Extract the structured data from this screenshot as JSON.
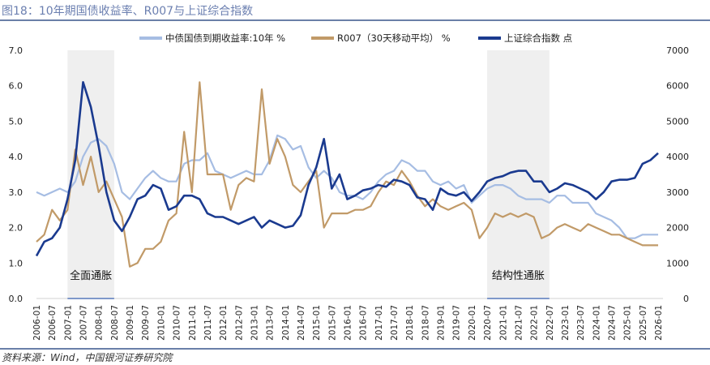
{
  "title": "图18：10年期国债收益率、R007与上证综合指数",
  "source": "资料来源：Wind，中国银河证券研究院",
  "chart_data": {
    "type": "line",
    "legend_position": "top",
    "grid": false,
    "y_left": {
      "range": [
        0,
        7
      ],
      "ticks": [
        "0.0",
        "1.0",
        "2.0",
        "3.0",
        "4.0",
        "5.0",
        "6.0",
        "7.0"
      ]
    },
    "y_right": {
      "range": [
        0,
        7000
      ],
      "ticks": [
        "0",
        "1000",
        "2000",
        "3000",
        "4000",
        "5000",
        "6000",
        "7000"
      ]
    },
    "x_ticks": [
      "2006-01",
      "2006-07",
      "2007-01",
      "2007-07",
      "2008-01",
      "2008-07",
      "2009-01",
      "2009-07",
      "2010-01",
      "2010-07",
      "2011-01",
      "2011-07",
      "2012-01",
      "2012-07",
      "2013-01",
      "2013-07",
      "2014-01",
      "2014-07",
      "2015-01",
      "2015-07",
      "2016-01",
      "2016-07",
      "2017-01",
      "2017-07",
      "2018-01",
      "2018-07",
      "2019-01",
      "2019-07",
      "2020-01",
      "2020-07",
      "2021-01",
      "2021-07",
      "2022-01",
      "2022-07",
      "2023-01",
      "2023-07",
      "2024-01",
      "2024-07",
      "2025-01",
      "2025-07",
      "2026-01"
    ],
    "shaded_periods": [
      {
        "label": "全面通胀",
        "start": "2007-01",
        "end": "2008-07"
      },
      {
        "label": "结构性通胀",
        "start": "2020-07",
        "end": "2022-07"
      }
    ],
    "x_start_year": 2006,
    "x_step": "quarter",
    "series": [
      {
        "name": "中债国债到期收益率:10年 %",
        "axis": "left",
        "color": "#a6bde3",
        "values": [
          3.0,
          2.9,
          3.0,
          3.1,
          3.0,
          3.3,
          4.0,
          4.4,
          4.5,
          4.3,
          3.8,
          3.0,
          2.8,
          3.1,
          3.4,
          3.6,
          3.4,
          3.3,
          3.3,
          3.8,
          3.9,
          3.9,
          4.1,
          3.6,
          3.5,
          3.4,
          3.5,
          3.6,
          3.5,
          3.5,
          3.9,
          4.6,
          4.5,
          4.2,
          4.3,
          3.7,
          3.4,
          3.6,
          3.4,
          3.0,
          2.9,
          2.9,
          2.8,
          3.0,
          3.3,
          3.5,
          3.6,
          3.9,
          3.8,
          3.6,
          3.6,
          3.3,
          3.2,
          3.3,
          3.1,
          3.2,
          2.7,
          2.9,
          3.1,
          3.2,
          3.2,
          3.1,
          2.9,
          2.8,
          2.8,
          2.8,
          2.7,
          2.9,
          2.9,
          2.7,
          2.7,
          2.7,
          2.4,
          2.3,
          2.2,
          2.0,
          1.7,
          1.7,
          1.8,
          1.8,
          1.8
        ]
      },
      {
        "name": "R007（30天移动平均） %",
        "axis": "left",
        "color": "#c19a68",
        "values": [
          1.6,
          1.8,
          2.5,
          2.2,
          2.5,
          4.2,
          3.2,
          4.0,
          3.0,
          3.3,
          2.8,
          2.3,
          0.9,
          1.0,
          1.4,
          1.4,
          1.6,
          2.2,
          2.4,
          4.7,
          3.0,
          6.1,
          3.5,
          3.5,
          3.5,
          2.5,
          3.2,
          3.4,
          3.3,
          5.9,
          3.8,
          4.5,
          4.0,
          3.2,
          3.0,
          3.3,
          3.6,
          2.0,
          2.4,
          2.4,
          2.4,
          2.5,
          2.5,
          2.6,
          3.0,
          3.3,
          3.2,
          3.6,
          3.3,
          2.9,
          2.6,
          2.8,
          2.6,
          2.5,
          2.6,
          2.7,
          2.5,
          1.7,
          2.0,
          2.4,
          2.3,
          2.4,
          2.3,
          2.4,
          2.3,
          1.7,
          1.8,
          2.0,
          2.1,
          2.0,
          1.9,
          2.1,
          2.0,
          1.9,
          1.8,
          1.8,
          1.7,
          1.6,
          1.5,
          1.5,
          1.5
        ]
      },
      {
        "name": "上证综合指数 点",
        "axis": "right",
        "color": "#1a3a8f",
        "values": [
          1200,
          1600,
          1700,
          2000,
          2800,
          3900,
          6100,
          5400,
          4300,
          3000,
          2200,
          1900,
          2300,
          2800,
          2900,
          3200,
          3100,
          2500,
          2600,
          2900,
          2900,
          2800,
          2400,
          2300,
          2300,
          2200,
          2100,
          2200,
          2300,
          2000,
          2200,
          2100,
          2000,
          2050,
          2350,
          3200,
          3700,
          4500,
          3100,
          3500,
          2800,
          2900,
          3050,
          3100,
          3200,
          3150,
          3350,
          3300,
          3200,
          2850,
          2800,
          2500,
          3100,
          2950,
          2900,
          3000,
          2750,
          3000,
          3300,
          3400,
          3450,
          3550,
          3600,
          3600,
          3300,
          3300,
          3000,
          3100,
          3250,
          3200,
          3100,
          3000,
          2800,
          3000,
          3300,
          3350,
          3350,
          3400,
          3800,
          3900,
          4100
        ]
      }
    ]
  }
}
